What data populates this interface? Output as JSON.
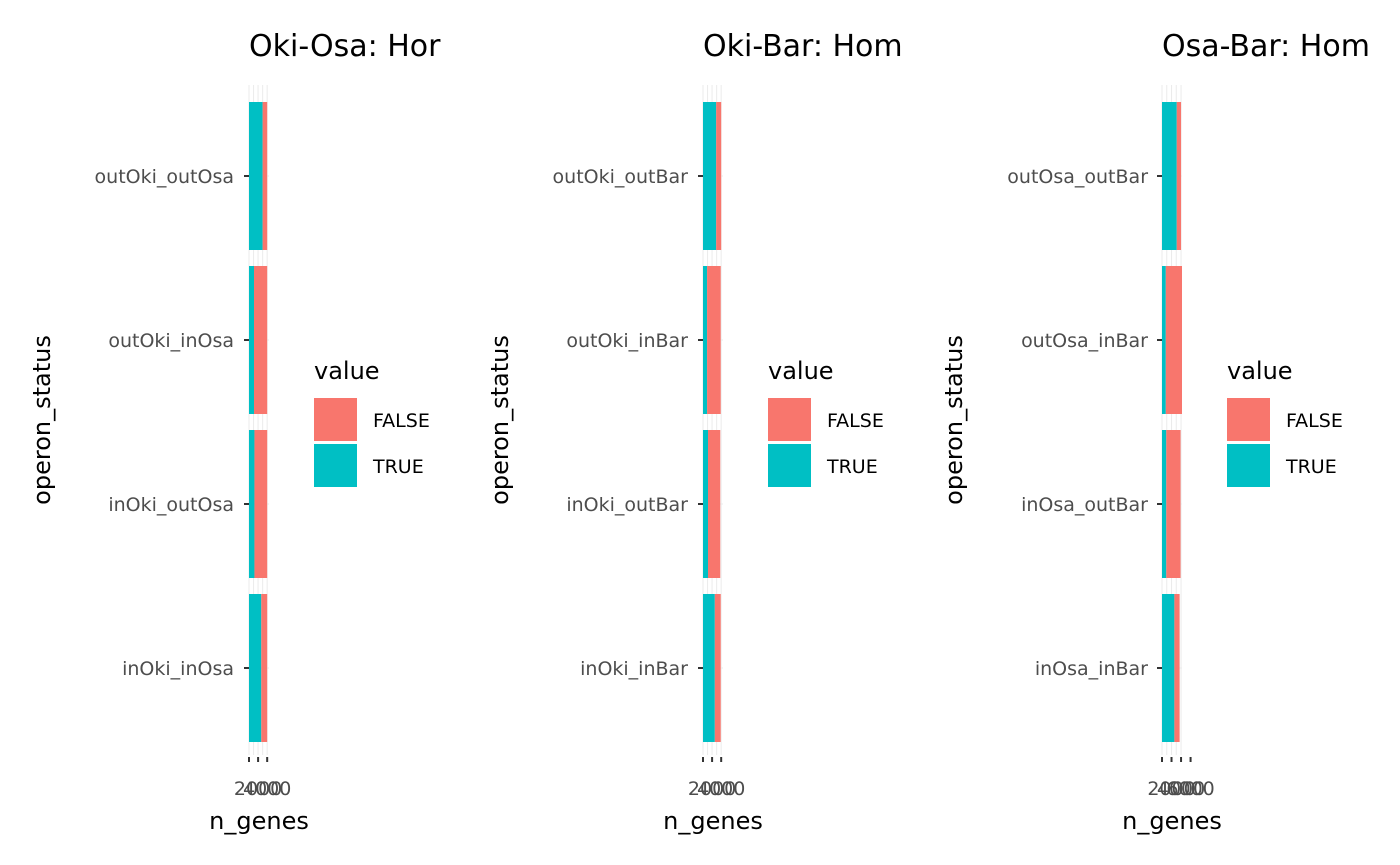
{
  "chart_data": [
    {
      "type": "bar",
      "orientation": "horizontal",
      "stacked": true,
      "title": "Oki-Osa: Hor",
      "xlabel": "n_genes",
      "ylabel": "operon_status",
      "categories": [
        "inOki_inOsa",
        "inOki_outOsa",
        "outOki_inOsa",
        "outOki_outOsa"
      ],
      "series": [
        {
          "name": "TRUE",
          "values": [
            2700,
            1200,
            1100,
            3000
          ]
        },
        {
          "name": "FALSE",
          "values": [
            1300,
            2800,
            2900,
            1000
          ]
        }
      ],
      "xlim": [
        0,
        4400
      ],
      "tick_labels": [
        "2000",
        "4000"
      ],
      "tick_values": [
        2000,
        4000
      ],
      "legend": {
        "title": "value",
        "entries": [
          "FALSE",
          "TRUE"
        ],
        "position": "right"
      },
      "grid": true
    },
    {
      "type": "bar",
      "orientation": "horizontal",
      "stacked": true,
      "title": "Oki-Bar: Hom",
      "xlabel": "n_genes",
      "ylabel": "operon_status",
      "categories": [
        "inOki_inBar",
        "inOki_outBar",
        "outOki_inBar",
        "outOki_outBar"
      ],
      "series": [
        {
          "name": "TRUE",
          "values": [
            2600,
            1100,
            900,
            2900
          ]
        },
        {
          "name": "FALSE",
          "values": [
            1300,
            2700,
            3000,
            1100
          ]
        }
      ],
      "xlim": [
        0,
        4400
      ],
      "tick_labels": [
        "2000",
        "4000"
      ],
      "tick_values": [
        2000,
        4000
      ],
      "legend": {
        "title": "value",
        "entries": [
          "FALSE",
          "TRUE"
        ],
        "position": "right"
      },
      "grid": true
    },
    {
      "type": "bar",
      "orientation": "horizontal",
      "stacked": true,
      "title": "Osa-Bar: Hom",
      "xlabel": "n_genes",
      "ylabel": "operon_status",
      "categories": [
        "inOsa_inBar",
        "inOsa_outBar",
        "outOsa_inBar",
        "outOsa_outBar"
      ],
      "series": [
        {
          "name": "TRUE",
          "values": [
            2600,
            900,
            800,
            3100
          ]
        },
        {
          "name": "FALSE",
          "values": [
            1100,
            3000,
            3400,
            900
          ]
        }
      ],
      "xlim": [
        0,
        4200
      ],
      "tick_labels": [
        "2000",
        "4000",
        "6000"
      ],
      "tick_values": [
        2000,
        4000,
        6000
      ],
      "legend": {
        "title": "value",
        "entries": [
          "FALSE",
          "TRUE"
        ],
        "position": "right"
      },
      "grid": true
    }
  ],
  "colors": {
    "TRUE": "#00BFC4",
    "FALSE": "#F8766D",
    "grid": "#ebebeb",
    "axis_text": "#4d4d4d",
    "tick": "#333333"
  }
}
